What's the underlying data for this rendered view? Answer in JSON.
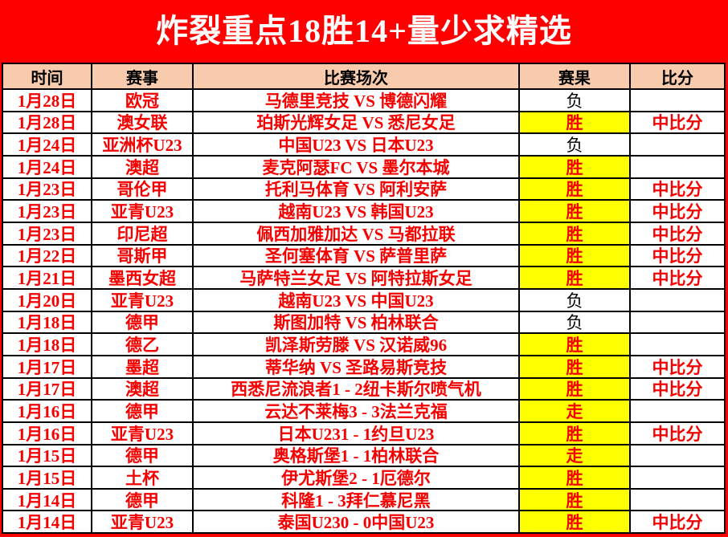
{
  "banner": {
    "title": "炸裂重点18胜14+量少求精选"
  },
  "colors": {
    "page_bg": "#fe0000",
    "header_bg": "#f8cbad",
    "win_bg": "#ffff00",
    "red_text": "#f40000",
    "black_text": "#000000"
  },
  "table": {
    "columns": [
      "时间",
      "赛事",
      "比赛场次",
      "赛果",
      "比分"
    ],
    "rows": [
      {
        "date": "1月28日",
        "league": "欧冠",
        "match": "马德里竞技 VS 博德闪耀",
        "result": "负",
        "highlight": false,
        "score": ""
      },
      {
        "date": "1月28日",
        "league": "澳女联",
        "match": "珀斯光辉女足 VS 悉尼女足",
        "result": "胜",
        "highlight": true,
        "score": "中比分"
      },
      {
        "date": "1月24日",
        "league": "亚洲杯U23",
        "match": "中国U23 VS 日本U23",
        "result": "负",
        "highlight": false,
        "score": ""
      },
      {
        "date": "1月24日",
        "league": "澳超",
        "match": "麦克阿瑟FC VS 墨尔本城",
        "result": "胜",
        "highlight": true,
        "score": ""
      },
      {
        "date": "1月23日",
        "league": "哥伦甲",
        "match": "托利马体育 VS 阿利安萨",
        "result": "胜",
        "highlight": true,
        "score": "中比分"
      },
      {
        "date": "1月23日",
        "league": "亚青U23",
        "match": "越南U23 VS 韩国U23",
        "result": "胜",
        "highlight": true,
        "score": "中比分"
      },
      {
        "date": "1月23日",
        "league": "印尼超",
        "match": "佩西加雅加达 VS 马都拉联",
        "result": "胜",
        "highlight": true,
        "score": "中比分"
      },
      {
        "date": "1月22日",
        "league": "哥斯甲",
        "match": "圣何塞体育 VS 萨普里萨",
        "result": "胜",
        "highlight": true,
        "score": "中比分"
      },
      {
        "date": "1月21日",
        "league": "墨西女超",
        "match": "马萨特兰女足 VS 阿特拉斯女足",
        "result": "胜",
        "highlight": true,
        "score": "中比分"
      },
      {
        "date": "1月20日",
        "league": "亚青U23",
        "match": "越南U23 VS 中国U23",
        "result": "负",
        "highlight": false,
        "score": ""
      },
      {
        "date": "1月18日",
        "league": "德甲",
        "match": "斯图加特 VS 柏林联合",
        "result": "负",
        "highlight": false,
        "score": ""
      },
      {
        "date": "1月18日",
        "league": "德乙",
        "match": "凯泽斯劳滕 VS 汉诺威96",
        "result": "胜",
        "highlight": true,
        "score": ""
      },
      {
        "date": "1月17日",
        "league": "墨超",
        "match": "蒂华纳 VS 圣路易斯竞技",
        "result": "胜",
        "highlight": true,
        "score": "中比分"
      },
      {
        "date": "1月17日",
        "league": "澳超",
        "match": "西悉尼流浪者1 - 2纽卡斯尔喷气机",
        "result": "胜",
        "highlight": true,
        "score": "中比分"
      },
      {
        "date": "1月16日",
        "league": "德甲",
        "match": "云达不莱梅3 - 3法兰克福",
        "result": "走",
        "highlight": true,
        "score": ""
      },
      {
        "date": "1月16日",
        "league": "亚青U23",
        "match": "日本U231 - 1约旦U23",
        "result": "胜",
        "highlight": true,
        "score": "中比分"
      },
      {
        "date": "1月15日",
        "league": "德甲",
        "match": "奥格斯堡1 - 1柏林联合",
        "result": "走",
        "highlight": true,
        "score": ""
      },
      {
        "date": "1月15日",
        "league": "土杯",
        "match": "伊尤斯堡2 - 1厄德尔",
        "result": "胜",
        "highlight": true,
        "score": ""
      },
      {
        "date": "1月14日",
        "league": "德甲",
        "match": "科隆1 - 3拜仁慕尼黑",
        "result": "胜",
        "highlight": true,
        "score": ""
      },
      {
        "date": "1月14日",
        "league": "亚青U23",
        "match": "泰国U230 - 0中国U23",
        "result": "胜",
        "highlight": true,
        "score": "中比分"
      }
    ]
  }
}
